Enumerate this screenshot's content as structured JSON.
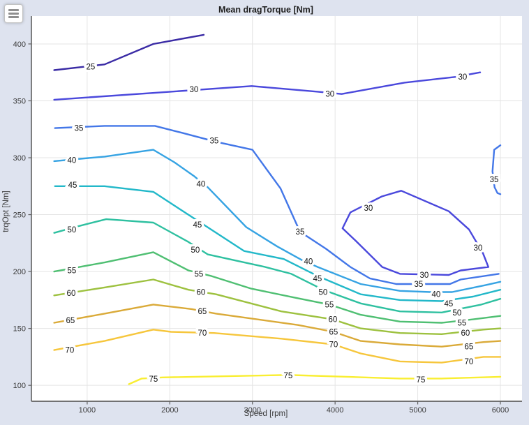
{
  "window": {
    "menu_button": "hamburger"
  },
  "chart_data": {
    "type": "contour",
    "title": "Mean dragTorque [Nm]",
    "xlabel": "Speed [rpm]",
    "ylabel": "trqOpt [Nm]",
    "x_ticks": [
      1000,
      2000,
      3000,
      4000,
      5000,
      6000
    ],
    "y_ticks": [
      100,
      150,
      200,
      250,
      300,
      350,
      400
    ],
    "x_range": [
      325,
      6262
    ],
    "y_range": [
      86,
      424.5
    ],
    "grid": true,
    "legend": "none (inline contour labels)",
    "colors": {
      "figure_bg": "#dee3ef",
      "plot_bg": "#ffffff",
      "grid": "#e4e4e4",
      "axis": "#606060",
      "level_25": "#3a2ba5",
      "level_30": "#4a48dc",
      "level_35": "#4377e8",
      "level_40": "#36a3e3",
      "level_45": "#22b8c9",
      "level_50": "#2ec0a0",
      "level_55": "#4fbf72",
      "level_60": "#9dc13f",
      "level_65": "#daaa38",
      "level_70": "#f6c63c",
      "level_75": "#f9ee32"
    },
    "levels": [
      25,
      30,
      35,
      40,
      45,
      50,
      55,
      60,
      65,
      70,
      75
    ],
    "contours": [
      {
        "level": 25,
        "closed": false,
        "points": [
          [
            600,
            377
          ],
          [
            1210,
            382
          ],
          [
            1800,
            400
          ],
          [
            2410,
            408
          ]
        ]
      },
      {
        "level": 30,
        "closed": false,
        "points": [
          [
            600,
            351
          ],
          [
            2010,
            358
          ],
          [
            2990,
            363
          ],
          [
            3790,
            358
          ],
          [
            4080,
            356
          ],
          [
            4840,
            366
          ],
          [
            5460,
            371
          ],
          [
            5755,
            375
          ]
        ]
      },
      {
        "level": 30,
        "closed": true,
        "points": [
          [
            4800,
            271
          ],
          [
            5375,
            253
          ],
          [
            5620,
            237
          ],
          [
            5790,
            216
          ],
          [
            5855,
            204
          ],
          [
            5520,
            201
          ],
          [
            5375,
            197
          ],
          [
            4785,
            198
          ],
          [
            4570,
            204
          ],
          [
            4250,
            227
          ],
          [
            4090,
            238
          ],
          [
            4185,
            252
          ],
          [
            4565,
            266
          ]
        ]
      },
      {
        "level": 35,
        "closed": false,
        "points": [
          [
            610,
            326
          ],
          [
            1210,
            328
          ],
          [
            1820,
            328
          ],
          [
            2140,
            322
          ],
          [
            2560,
            314
          ],
          [
            3000,
            307
          ],
          [
            3340,
            273
          ],
          [
            3575,
            235
          ],
          [
            3890,
            220
          ],
          [
            4185,
            204
          ],
          [
            4420,
            194
          ],
          [
            4740,
            189
          ],
          [
            5390,
            189
          ],
          [
            5520,
            193
          ],
          [
            5980,
            198
          ]
        ]
      },
      {
        "level": 35,
        "closed": false,
        "points": [
          [
            6000,
            311
          ],
          [
            5925,
            307
          ],
          [
            5905,
            288
          ],
          [
            5930,
            274
          ],
          [
            5965,
            269
          ],
          [
            6000,
            268
          ]
        ]
      },
      {
        "level": 40,
        "closed": false,
        "points": [
          [
            600,
            297
          ],
          [
            1210,
            301
          ],
          [
            1800,
            307
          ],
          [
            2055,
            296
          ],
          [
            2290,
            284
          ],
          [
            2460,
            274
          ],
          [
            2925,
            239
          ],
          [
            3300,
            222
          ],
          [
            3600,
            210
          ],
          [
            3790,
            204
          ],
          [
            4310,
            189
          ],
          [
            4785,
            183
          ],
          [
            5155,
            182
          ],
          [
            5415,
            182
          ],
          [
            5815,
            188
          ],
          [
            6000,
            191
          ]
        ]
      },
      {
        "level": 45,
        "closed": false,
        "points": [
          [
            610,
            275
          ],
          [
            1210,
            275
          ],
          [
            1800,
            270
          ],
          [
            2265,
            248
          ],
          [
            2900,
            218
          ],
          [
            3380,
            211
          ],
          [
            3790,
            196
          ],
          [
            4310,
            180
          ],
          [
            4785,
            175
          ],
          [
            5290,
            174
          ],
          [
            5670,
            178
          ],
          [
            6000,
            184
          ]
        ]
      },
      {
        "level": 50,
        "closed": false,
        "points": [
          [
            600,
            234
          ],
          [
            900,
            240
          ],
          [
            1230,
            246
          ],
          [
            1800,
            243
          ],
          [
            2225,
            226
          ],
          [
            2460,
            215
          ],
          [
            2840,
            209
          ],
          [
            3155,
            204
          ],
          [
            3470,
            198
          ],
          [
            3855,
            184
          ],
          [
            4310,
            172
          ],
          [
            4785,
            165
          ],
          [
            5290,
            164
          ],
          [
            5770,
            171
          ],
          [
            6000,
            176
          ]
        ]
      },
      {
        "level": 55,
        "closed": false,
        "points": [
          [
            600,
            200
          ],
          [
            1210,
            208
          ],
          [
            1800,
            217
          ],
          [
            2225,
            201
          ],
          [
            2505,
            196
          ],
          [
            2985,
            185
          ],
          [
            3515,
            177
          ],
          [
            3930,
            171
          ],
          [
            4310,
            162
          ],
          [
            4785,
            156
          ],
          [
            5290,
            155
          ],
          [
            5672,
            158
          ],
          [
            6000,
            161
          ]
        ]
      },
      {
        "level": 60,
        "closed": false,
        "points": [
          [
            600,
            179
          ],
          [
            1210,
            186
          ],
          [
            1800,
            193
          ],
          [
            2225,
            184
          ],
          [
            2560,
            180
          ],
          [
            3350,
            165
          ],
          [
            3970,
            158
          ],
          [
            4310,
            150
          ],
          [
            4785,
            146
          ],
          [
            5290,
            145
          ],
          [
            5795,
            149
          ],
          [
            6000,
            150
          ]
        ]
      },
      {
        "level": 65,
        "closed": false,
        "points": [
          [
            600,
            155
          ],
          [
            1210,
            163
          ],
          [
            1800,
            171
          ],
          [
            2265,
            167
          ],
          [
            2560,
            163
          ],
          [
            3550,
            153
          ],
          [
            3980,
            147
          ],
          [
            4310,
            139
          ],
          [
            4785,
            136
          ],
          [
            5290,
            134
          ],
          [
            5795,
            138
          ],
          [
            6000,
            139
          ]
        ]
      },
      {
        "level": 70,
        "closed": false,
        "points": [
          [
            600,
            131
          ],
          [
            1210,
            139
          ],
          [
            1800,
            149
          ],
          [
            2015,
            147
          ],
          [
            2535,
            146
          ],
          [
            3350,
            141
          ],
          [
            3980,
            136
          ],
          [
            4310,
            128
          ],
          [
            4785,
            121
          ],
          [
            5290,
            120
          ],
          [
            5795,
            125
          ],
          [
            6000,
            125
          ]
        ]
      },
      {
        "level": 75,
        "closed": false,
        "points": [
          [
            1505,
            101
          ],
          [
            1660,
            106
          ],
          [
            1910,
            107
          ],
          [
            3350,
            109
          ],
          [
            3490,
            109
          ],
          [
            4785,
            106
          ],
          [
            5290,
            106
          ],
          [
            6000,
            107.5
          ]
        ]
      }
    ],
    "contour_labels": [
      {
        "text": "25",
        "x": 1042,
        "y": 380
      },
      {
        "text": "30",
        "x": 2292,
        "y": 360
      },
      {
        "text": "30",
        "x": 3938,
        "y": 356
      },
      {
        "text": "30",
        "x": 5543,
        "y": 371
      },
      {
        "text": "30",
        "x": 4403,
        "y": 256
      },
      {
        "text": "30",
        "x": 5729,
        "y": 221
      },
      {
        "text": "30",
        "x": 5079,
        "y": 197
      },
      {
        "text": "35",
        "x": 899,
        "y": 326
      },
      {
        "text": "35",
        "x": 2537,
        "y": 315
      },
      {
        "text": "35",
        "x": 3576,
        "y": 235
      },
      {
        "text": "35",
        "x": 5011,
        "y": 189
      },
      {
        "text": "35",
        "x": 5924,
        "y": 281
      },
      {
        "text": "40",
        "x": 814,
        "y": 298
      },
      {
        "text": "40",
        "x": 2376,
        "y": 277
      },
      {
        "text": "40",
        "x": 3677,
        "y": 209
      },
      {
        "text": "40",
        "x": 5222,
        "y": 180
      },
      {
        "text": "45",
        "x": 823,
        "y": 276
      },
      {
        "text": "45",
        "x": 2334,
        "y": 241
      },
      {
        "text": "45",
        "x": 3787,
        "y": 194
      },
      {
        "text": "45",
        "x": 5374,
        "y": 172
      },
      {
        "text": "50",
        "x": 814,
        "y": 237
      },
      {
        "text": "50",
        "x": 2309,
        "y": 219
      },
      {
        "text": "50",
        "x": 3854,
        "y": 182
      },
      {
        "text": "50",
        "x": 5476,
        "y": 164
      },
      {
        "text": "55",
        "x": 814,
        "y": 201
      },
      {
        "text": "55",
        "x": 2351,
        "y": 198
      },
      {
        "text": "55",
        "x": 3930,
        "y": 171
      },
      {
        "text": "55",
        "x": 5535,
        "y": 155
      },
      {
        "text": "60",
        "x": 806,
        "y": 181
      },
      {
        "text": "60",
        "x": 2376,
        "y": 182
      },
      {
        "text": "60",
        "x": 3972,
        "y": 158
      },
      {
        "text": "60",
        "x": 5577,
        "y": 146
      },
      {
        "text": "65",
        "x": 797,
        "y": 157
      },
      {
        "text": "65",
        "x": 2393,
        "y": 165
      },
      {
        "text": "65",
        "x": 3981,
        "y": 147
      },
      {
        "text": "65",
        "x": 5619,
        "y": 134
      },
      {
        "text": "70",
        "x": 789,
        "y": 131
      },
      {
        "text": "70",
        "x": 2393,
        "y": 146
      },
      {
        "text": "70",
        "x": 3981,
        "y": 136
      },
      {
        "text": "70",
        "x": 5619,
        "y": 121
      },
      {
        "text": "75",
        "x": 1802,
        "y": 105.6
      },
      {
        "text": "75",
        "x": 3432,
        "y": 108.7
      },
      {
        "text": "75",
        "x": 5037,
        "y": 105
      }
    ]
  }
}
